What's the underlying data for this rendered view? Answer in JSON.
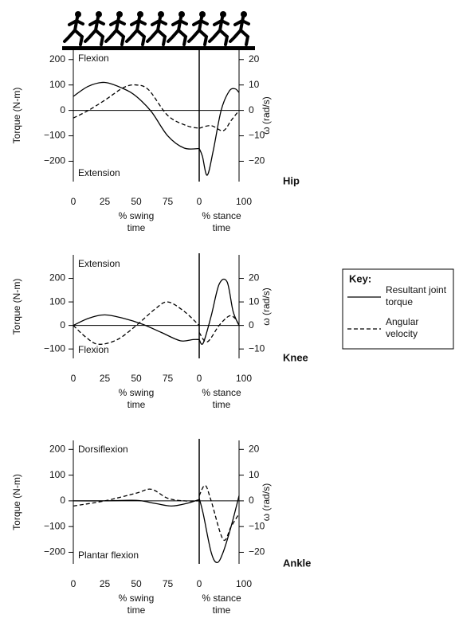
{
  "chart_data": [
    {
      "type": "line",
      "title": "Hip",
      "legend_title": "Key:",
      "annotations": [
        "Flexion",
        "Extension"
      ],
      "ylabel": "Torque (N-m)",
      "y2label": "ω (rad/s)",
      "x_segments": [
        {
          "label": "% swing time",
          "xlim": [
            0,
            100
          ],
          "xticks": [
            0,
            25,
            50,
            75
          ]
        },
        {
          "label": "% stance time",
          "xlim": [
            0,
            100
          ],
          "xticks": [
            0,
            100
          ]
        }
      ],
      "ylim": [
        -280,
        240
      ],
      "yticks": [
        200,
        100,
        0,
        {
          "value": -100,
          "label": "−100"
        },
        {
          "value": -200,
          "label": "−200"
        }
      ],
      "y2lim": [
        -28,
        24
      ],
      "y2ticks": [
        20,
        10,
        0,
        {
          "value": -10,
          "label": "−10"
        },
        {
          "value": -20,
          "label": "−20"
        }
      ],
      "series": [
        {
          "name": "Resultant joint torque",
          "color": "#000000",
          "dash": "solid",
          "segments": [
            {
              "x": [
                0,
                12,
                25,
                40,
                50,
                62,
                75,
                88,
                100
              ],
              "values": [
                55,
                95,
                110,
                85,
                55,
                -5,
                -100,
                -148,
                -150
              ]
            },
            {
              "x": [
                0,
                8,
                20,
                35,
                55,
                75,
                90,
                100
              ],
              "values": [
                -150,
                -180,
                -255,
                -160,
                0,
                75,
                85,
                70
              ]
            }
          ]
        },
        {
          "name": "Angular velocity",
          "color": "#000000",
          "dash": "dashed",
          "axis": "y2",
          "segments": [
            {
              "x": [
                0,
                12,
                25,
                40,
                50,
                60,
                75,
                90,
                100
              ],
              "values": [
                -3,
                0,
                4,
                9,
                10,
                8,
                -2,
                -6,
                -7
              ]
            },
            {
              "x": [
                0,
                30,
                60,
                80,
                100
              ],
              "values": [
                -7,
                -6,
                -8,
                -4,
                0
              ]
            }
          ]
        }
      ]
    },
    {
      "type": "line",
      "title": "Knee",
      "annotations": [
        "Extension",
        "Flexion"
      ],
      "ylabel": "Torque (N-m)",
      "y2label": "ω (rad/s)",
      "x_segments": [
        {
          "label": "% swing time",
          "xlim": [
            0,
            100
          ],
          "xticks": [
            0,
            25,
            50,
            75
          ]
        },
        {
          "label": "% stance time",
          "xlim": [
            0,
            100
          ],
          "xticks": [
            0,
            100
          ]
        }
      ],
      "ylim": [
        -140,
        300
      ],
      "yticks": [
        200,
        100,
        0,
        {
          "value": -100,
          "label": "−100"
        }
      ],
      "y2lim": [
        -14,
        30
      ],
      "y2ticks": [
        20,
        10,
        0,
        {
          "value": -10,
          "label": "−10"
        }
      ],
      "series": [
        {
          "color": "#000000",
          "dash": "solid",
          "segments": [
            {
              "x": [
                0,
                12,
                25,
                40,
                55,
                70,
                85,
                95,
                100
              ],
              "values": [
                0,
                30,
                45,
                30,
                5,
                -30,
                -65,
                -60,
                -60
              ]
            },
            {
              "x": [
                0,
                10,
                30,
                50,
                70,
                85,
                100
              ],
              "values": [
                -60,
                -75,
                40,
                175,
                185,
                60,
                0
              ]
            }
          ]
        },
        {
          "color": "#000000",
          "dash": "dashed",
          "axis": "y2",
          "segments": [
            {
              "x": [
                0,
                10,
                20,
                35,
                50,
                65,
                75,
                88,
                100
              ],
              "values": [
                0,
                -5,
                -8,
                -6,
                0,
                7,
                10,
                6,
                0
              ]
            },
            {
              "x": [
                0,
                20,
                50,
                75,
                90,
                100
              ],
              "values": [
                -3,
                -7,
                0,
                4,
                3,
                0
              ]
            }
          ]
        }
      ]
    },
    {
      "type": "line",
      "title": "Ankle",
      "annotations": [
        "Dorsiflexion",
        "Plantar flexion"
      ],
      "ylabel": "Torque (N-m)",
      "y2label": "ω (rad/s)",
      "x_segments": [
        {
          "label": "% swing time",
          "xlim": [
            0,
            100
          ],
          "xticks": [
            0,
            25,
            50,
            75
          ]
        },
        {
          "label": "% stance time",
          "xlim": [
            0,
            100
          ],
          "xticks": [
            0,
            100
          ]
        }
      ],
      "ylim": [
        -245,
        235
      ],
      "yticks": [
        200,
        100,
        0,
        {
          "value": -100,
          "label": "−100"
        },
        {
          "value": -200,
          "label": "−200"
        }
      ],
      "y2lim": [
        -24.5,
        23.5
      ],
      "y2ticks": [
        20,
        10,
        0,
        {
          "value": -10,
          "label": "−10"
        },
        {
          "value": -20,
          "label": "−20"
        }
      ],
      "series": [
        {
          "color": "#000000",
          "dash": "solid",
          "segments": [
            {
              "x": [
                0,
                25,
                50,
                65,
                78,
                90,
                100
              ],
              "values": [
                0,
                0,
                2,
                -10,
                -20,
                -10,
                5
              ]
            },
            {
              "x": [
                0,
                10,
                30,
                45,
                60,
                80,
                100
              ],
              "values": [
                10,
                -50,
                -200,
                -240,
                -200,
                -100,
                20
              ]
            }
          ]
        },
        {
          "color": "#000000",
          "dash": "dashed",
          "axis": "y2",
          "segments": [
            {
              "x": [
                0,
                25,
                50,
                62,
                75,
                88,
                100
              ],
              "values": [
                -2,
                0,
                3,
                4.5,
                1,
                0,
                0
              ]
            },
            {
              "x": [
                0,
                15,
                30,
                60,
                80,
                100
              ],
              "values": [
                2,
                6,
                0,
                -15,
                -10,
                -5
              ]
            }
          ]
        }
      ]
    }
  ]
}
